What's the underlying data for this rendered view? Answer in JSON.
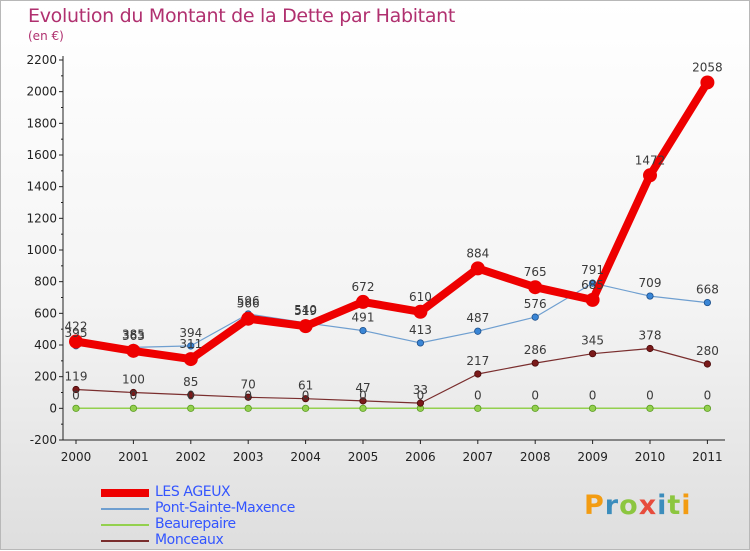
{
  "header": {
    "title": "Evolution du Montant de la Dette par Habitant",
    "subtitle": "(en €)"
  },
  "chart_data": {
    "type": "line",
    "title": "Evolution du Montant de la Dette par Habitant",
    "ylabel": "(en €)",
    "xlabel": "",
    "x": [
      "2000",
      "2001",
      "2002",
      "2003",
      "2004",
      "2005",
      "2006",
      "2007",
      "2008",
      "2009",
      "2010",
      "2011"
    ],
    "ylim": [
      -200,
      2200
    ],
    "yticks": [
      "-200",
      "0",
      "200",
      "400",
      "600",
      "800",
      "1000",
      "1200",
      "1400",
      "1600",
      "1800",
      "2000",
      "2200"
    ],
    "grid": false,
    "legend_position": "bottom-left",
    "series": [
      {
        "name": "LES AGEUX",
        "color": "#ee0000",
        "values": [
          422,
          363,
          311,
          566,
          519,
          672,
          610,
          884,
          765,
          685,
          1472,
          2058
        ],
        "labels": [
          "422",
          "363",
          "311",
          "566",
          "519",
          "672",
          "610",
          "884",
          "765",
          "685",
          "1472",
          "2058"
        ]
      },
      {
        "name": "Pont-Sainte-Maxence",
        "color": "#6f9fd0",
        "values": [
          395,
          385,
          394,
          596,
          540,
          491,
          413,
          487,
          576,
          791,
          709,
          668
        ],
        "labels": [
          "395",
          "385",
          "394",
          "596",
          "540",
          "491",
          "413",
          "487",
          "576",
          "791",
          "709",
          "668"
        ]
      },
      {
        "name": "Beaurepaire",
        "color": "#93d04e",
        "values": [
          0,
          0,
          0,
          0,
          0,
          0,
          0,
          0,
          0,
          0,
          0,
          0
        ],
        "labels": [
          "0",
          "0",
          "0",
          "0",
          "0",
          "0",
          "0",
          "0",
          "0",
          "0",
          "0",
          "0"
        ]
      },
      {
        "name": "Monceaux",
        "color": "#7a2e2e",
        "values": [
          119,
          100,
          85,
          70,
          61,
          47,
          33,
          217,
          286,
          345,
          378,
          280
        ],
        "labels": [
          "119",
          "100",
          "85",
          "70",
          "61",
          "47",
          "33",
          "217",
          "286",
          "345",
          "378",
          "280"
        ]
      }
    ]
  },
  "legend": {
    "items": [
      {
        "label": "LES AGEUX",
        "color": "#ee0000"
      },
      {
        "label": "Pont-Sainte-Maxence",
        "color": "#6f9fd0"
      },
      {
        "label": "Beaurepaire",
        "color": "#93d04e"
      },
      {
        "label": "Monceaux",
        "color": "#7a2e2e"
      }
    ]
  },
  "logo": {
    "text": "Proxiti",
    "letters": [
      {
        "ch": "P",
        "color": "#f39c12"
      },
      {
        "ch": "r",
        "color": "#3c8dbc"
      },
      {
        "ch": "o",
        "color": "#8cc63f"
      },
      {
        "ch": "x",
        "color": "#e74c3c"
      },
      {
        "ch": "i",
        "color": "#3c8dbc"
      },
      {
        "ch": "t",
        "color": "#8cc63f"
      },
      {
        "ch": "i",
        "color": "#f39c12"
      }
    ]
  }
}
